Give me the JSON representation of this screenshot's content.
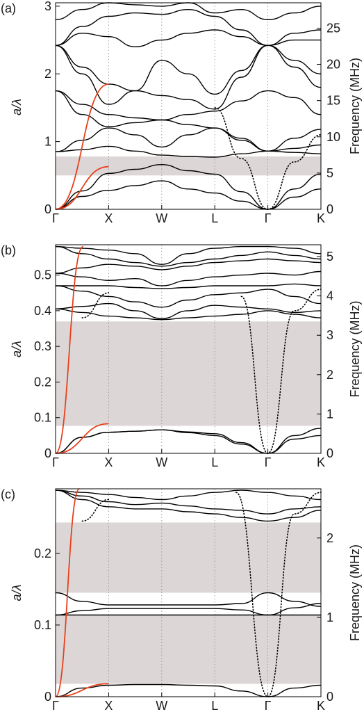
{
  "chart_data": [
    {
      "type": "line",
      "panel_label": "(a)",
      "xlabel": "",
      "ylabel": "a/λ",
      "y2label": "Frequency (MHz)",
      "x_ticks": [
        "Γ",
        "X",
        "W",
        "L",
        "Γ",
        "K"
      ],
      "ylim": [
        0,
        3.05
      ],
      "y_ticks": [
        "0",
        "1",
        "2",
        "3"
      ],
      "y2lim": [
        0,
        28.5
      ],
      "y2_ticks": [
        "0",
        "5",
        "10",
        "15",
        "20",
        "25"
      ],
      "gaps": [
        [
          0.5,
          0.78
        ]
      ],
      "series": [
        {
          "style": "solid",
          "color": "#000000",
          "x": [
            0,
            0.5,
            1,
            1.5,
            2,
            2.5,
            3,
            3.5,
            4,
            4.5,
            5
          ],
          "y": [
            0,
            0.19,
            0.28,
            0.35,
            0.42,
            0.3,
            0.24,
            0.12,
            0,
            0.18,
            0.3
          ]
        },
        {
          "style": "solid",
          "color": "#000000",
          "x": [
            0,
            0.5,
            1,
            1.5,
            2,
            2.5,
            3,
            3.5,
            4,
            4.5,
            5
          ],
          "y": [
            0,
            0.27,
            0.53,
            0.59,
            0.66,
            0.57,
            0.52,
            0.26,
            0,
            0.3,
            0.52
          ]
        },
        {
          "style": "solid",
          "color": "#000000",
          "x": [
            0,
            0.5,
            1,
            1.5,
            2,
            2.5,
            3,
            3.5,
            4,
            4.5,
            5
          ],
          "y": [
            0.85,
            0.88,
            0.93,
            0.86,
            0.8,
            0.78,
            0.77,
            0.82,
            0.86,
            0.84,
            0.82
          ]
        },
        {
          "style": "solid",
          "color": "#000000",
          "x": [
            0,
            0.5,
            1,
            1.5,
            2,
            2.5,
            3,
            3.5,
            4,
            4.5,
            5
          ],
          "y": [
            0.85,
            1.02,
            1.2,
            1.1,
            0.92,
            1.1,
            1.2,
            1.02,
            0.86,
            0.9,
            0.95
          ]
        },
        {
          "style": "solid",
          "color": "#000000",
          "x": [
            0,
            0.5,
            1,
            1.5,
            2,
            2.5,
            3,
            3.5,
            4,
            4.5,
            5
          ],
          "y": [
            1.75,
            1.4,
            1.22,
            1.28,
            1.32,
            1.25,
            1.2,
            1.05,
            0.86,
            1.05,
            1.18
          ]
        },
        {
          "style": "solid",
          "color": "#000000",
          "x": [
            0,
            0.5,
            1,
            1.5,
            2,
            2.5,
            3,
            3.5,
            4,
            4.5,
            5
          ],
          "y": [
            1.75,
            1.55,
            1.4,
            1.35,
            1.32,
            1.4,
            1.45,
            1.6,
            1.75,
            1.65,
            1.4
          ]
        },
        {
          "style": "solid",
          "color": "#000000",
          "x": [
            0,
            0.5,
            1,
            1.5,
            2,
            2.5,
            3,
            3.5,
            4,
            4.5,
            5
          ],
          "y": [
            2.42,
            2.1,
            1.85,
            1.75,
            1.68,
            1.62,
            1.48,
            1.95,
            2.42,
            2.1,
            1.8
          ]
        },
        {
          "style": "solid",
          "color": "#000000",
          "x": [
            0,
            0.5,
            1,
            1.5,
            2,
            2.5,
            3,
            3.5,
            4,
            4.5,
            5
          ],
          "y": [
            2.42,
            2.0,
            1.55,
            1.75,
            2.2,
            2.0,
            1.7,
            2.05,
            2.42,
            2.2,
            2.0
          ]
        },
        {
          "style": "solid",
          "color": "#000000",
          "x": [
            0,
            0.5,
            1,
            1.5,
            2,
            2.5,
            3,
            3.5,
            4,
            4.5,
            5
          ],
          "y": [
            2.42,
            2.6,
            2.55,
            2.4,
            2.5,
            2.6,
            2.65,
            2.55,
            2.42,
            2.5,
            2.5
          ]
        },
        {
          "style": "solid",
          "color": "#000000",
          "x": [
            0,
            0.5,
            1,
            1.5,
            2,
            2.5,
            3,
            3.5,
            4,
            4.5,
            5
          ],
          "y": [
            2.42,
            2.7,
            2.85,
            2.9,
            2.88,
            2.95,
            2.85,
            2.65,
            2.42,
            2.6,
            2.65
          ]
        },
        {
          "style": "solid",
          "color": "#000000",
          "x": [
            0,
            0.5,
            1,
            1.5,
            2,
            2.5,
            3,
            3.5,
            4,
            4.5,
            5
          ],
          "y": [
            2.8,
            2.95,
            3.05,
            3.02,
            3.0,
            3.05,
            2.9,
            2.95,
            2.8,
            2.9,
            3.0
          ]
        },
        {
          "style": "dotted",
          "color": "#000000",
          "x": [
            3.0,
            3.5,
            4.0,
            4.5,
            5.0
          ],
          "y": [
            1.5,
            0.75,
            0,
            0.7,
            1.1
          ]
        },
        {
          "style": "solid",
          "color": "#e8401c",
          "x": [
            0,
            1
          ],
          "y": [
            0,
            1.85
          ]
        },
        {
          "style": "solid",
          "color": "#e8401c",
          "x": [
            0,
            1
          ],
          "y": [
            0,
            0.63
          ]
        }
      ]
    },
    {
      "type": "line",
      "panel_label": "(b)",
      "xlabel": "",
      "ylabel": "a/λ",
      "y2label": "Frequency (MHz)",
      "x_ticks": [
        "Γ",
        "X",
        "W",
        "L",
        "Γ",
        "K"
      ],
      "ylim": [
        0,
        0.585
      ],
      "y_ticks": [
        "0",
        "0.1",
        "0.2",
        "0.3",
        "0.4",
        "0.5"
      ],
      "y2lim": [
        0,
        5.3
      ],
      "y2_ticks": [
        "0",
        "1",
        "2",
        "3",
        "4",
        "5"
      ],
      "gaps": [
        [
          0.077,
          0.37
        ]
      ],
      "series": [
        {
          "style": "solid",
          "color": "#000000",
          "x": [
            0,
            0.5,
            1,
            1.5,
            2,
            2.5,
            3,
            3.5,
            4,
            4.5,
            5
          ],
          "y": [
            0,
            0.045,
            0.059,
            0.062,
            0.066,
            0.058,
            0.05,
            0.026,
            0,
            0.04,
            0.05
          ]
        },
        {
          "style": "solid",
          "color": "#000000",
          "x": [
            0,
            0.5,
            1,
            1.5,
            2,
            2.5,
            3,
            3.5,
            4,
            4.5,
            5
          ],
          "y": [
            0,
            0.045,
            0.059,
            0.062,
            0.066,
            0.06,
            0.055,
            0.03,
            0,
            0.05,
            0.07
          ]
        },
        {
          "style": "solid",
          "color": "#000000",
          "x": [
            0,
            0.5,
            1,
            1.5,
            2,
            2.5,
            3,
            3.5,
            4,
            4.5,
            5
          ],
          "y": [
            0.405,
            0.395,
            0.385,
            0.38,
            0.375,
            0.38,
            0.385,
            0.39,
            0.4,
            0.39,
            0.38
          ]
        },
        {
          "style": "solid",
          "color": "#000000",
          "x": [
            0,
            0.5,
            1,
            1.5,
            2,
            2.5,
            3,
            3.5,
            4,
            4.5,
            5
          ],
          "y": [
            0.405,
            0.412,
            0.42,
            0.4,
            0.378,
            0.4,
            0.415,
            0.41,
            0.405,
            0.395,
            0.4
          ]
        },
        {
          "style": "solid",
          "color": "#000000",
          "x": [
            0,
            0.5,
            1,
            1.5,
            2,
            2.5,
            3,
            3.5,
            4,
            4.5,
            5
          ],
          "y": [
            0.47,
            0.455,
            0.44,
            0.425,
            0.41,
            0.43,
            0.445,
            0.45,
            0.46,
            0.44,
            0.42
          ]
        },
        {
          "style": "solid",
          "color": "#000000",
          "x": [
            0,
            0.5,
            1,
            1.5,
            2,
            2.5,
            3,
            3.5,
            4,
            4.5,
            5
          ],
          "y": [
            0.47,
            0.47,
            0.47,
            0.465,
            0.462,
            0.465,
            0.47,
            0.47,
            0.47,
            0.475,
            0.47
          ]
        },
        {
          "style": "solid",
          "color": "#000000",
          "x": [
            0,
            0.5,
            1,
            1.5,
            2,
            2.5,
            3,
            3.5,
            4,
            4.5,
            5
          ],
          "y": [
            0.505,
            0.495,
            0.485,
            0.49,
            0.47,
            0.485,
            0.495,
            0.5,
            0.505,
            0.5,
            0.51
          ]
        },
        {
          "style": "solid",
          "color": "#000000",
          "x": [
            0,
            0.5,
            1,
            1.5,
            2,
            2.5,
            3,
            3.5,
            4,
            4.5,
            5
          ],
          "y": [
            0.505,
            0.52,
            0.53,
            0.525,
            0.515,
            0.525,
            0.535,
            0.54,
            0.545,
            0.54,
            0.535
          ]
        },
        {
          "style": "solid",
          "color": "#000000",
          "x": [
            0,
            0.5,
            1,
            1.5,
            2,
            2.5,
            3,
            3.5,
            4,
            4.5,
            5
          ],
          "y": [
            0.58,
            0.56,
            0.545,
            0.535,
            0.525,
            0.535,
            0.545,
            0.555,
            0.565,
            0.555,
            0.545
          ]
        },
        {
          "style": "solid",
          "color": "#000000",
          "x": [
            0,
            0.5,
            1,
            1.5,
            2,
            2.5,
            3,
            3.5,
            4,
            4.5,
            5
          ],
          "y": [
            0.58,
            0.575,
            0.57,
            0.56,
            0.53,
            0.56,
            0.575,
            0.58,
            0.58,
            0.575,
            0.56
          ]
        },
        {
          "style": "dotted",
          "color": "#000000",
          "x": [
            0.5,
            1.0
          ],
          "y": [
            0.38,
            0.45
          ]
        },
        {
          "style": "dotted",
          "color": "#000000",
          "x": [
            3.5,
            4.0,
            4.5,
            5.0
          ],
          "y": [
            0.44,
            0,
            0.4,
            0.46
          ]
        },
        {
          "style": "solid",
          "color": "#e8401c",
          "x": [
            0,
            0.52
          ],
          "y": [
            0,
            0.58
          ]
        },
        {
          "style": "solid",
          "color": "#e8401c",
          "x": [
            0,
            1
          ],
          "y": [
            0,
            0.083
          ]
        }
      ]
    },
    {
      "type": "line",
      "panel_label": "(c)",
      "xlabel": "",
      "ylabel": "a/λ",
      "y2label": "Frequency (MHz)",
      "x_ticks": [
        "Γ",
        "X",
        "W",
        "L",
        "Γ",
        "K"
      ],
      "ylim": [
        0,
        0.29
      ],
      "y_ticks": [
        "0",
        "0.1",
        "0.2"
      ],
      "y2lim": [
        0,
        2.62
      ],
      "y2_ticks": [
        "0",
        "1",
        "2"
      ],
      "gaps": [
        [
          0.018,
          0.114
        ],
        [
          0.145,
          0.243
        ]
      ],
      "series": [
        {
          "style": "solid",
          "color": "#000000",
          "x": [
            0,
            0.5,
            1,
            1.5,
            2,
            2.5,
            3,
            3.5,
            4,
            4.5,
            5
          ],
          "y": [
            0,
            0.012,
            0.016,
            0.017,
            0.017,
            0.016,
            0.015,
            0.008,
            0,
            0.012,
            0.016
          ]
        },
        {
          "style": "solid",
          "color": "#000000",
          "x": [
            0,
            0.5,
            1,
            1.5,
            2,
            2.5,
            3,
            3.5,
            4,
            4.5,
            5
          ],
          "y": [
            0.114,
            0.114,
            0.114,
            0.114,
            0.114,
            0.114,
            0.114,
            0.114,
            0.114,
            0.114,
            0.114
          ]
        },
        {
          "style": "solid",
          "color": "#000000",
          "x": [
            0,
            0.5,
            1,
            1.5,
            2,
            2.5,
            3,
            3.5,
            4,
            4.5,
            5
          ],
          "y": [
            0.145,
            0.133,
            0.128,
            0.128,
            0.128,
            0.128,
            0.128,
            0.13,
            0.145,
            0.133,
            0.126
          ]
        },
        {
          "style": "solid",
          "color": "#000000",
          "x": [
            0,
            0.5,
            1,
            1.5,
            2,
            2.5,
            3,
            3.5,
            4,
            4.5,
            5
          ],
          "y": [
            0.114,
            0.12,
            0.123,
            0.123,
            0.123,
            0.123,
            0.123,
            0.121,
            0.114,
            0.124,
            0.13
          ]
        },
        {
          "style": "solid",
          "color": "#000000",
          "x": [
            0,
            0.5,
            1,
            1.5,
            2,
            2.5,
            3,
            3.5,
            4,
            4.5,
            5
          ],
          "y": [
            0.288,
            0.275,
            0.265,
            0.262,
            0.262,
            0.258,
            0.255,
            0.25,
            0.245,
            0.25,
            0.26
          ]
        },
        {
          "style": "solid",
          "color": "#000000",
          "x": [
            0,
            0.5,
            1,
            1.5,
            2,
            2.5,
            3,
            3.5,
            4,
            4.5,
            5
          ],
          "y": [
            0.288,
            0.28,
            0.272,
            0.268,
            0.27,
            0.266,
            0.262,
            0.26,
            0.255,
            0.262,
            0.265
          ]
        },
        {
          "style": "solid",
          "color": "#000000",
          "x": [
            0,
            0.5,
            1,
            1.5,
            2,
            2.5,
            3,
            3.5,
            4,
            4.5,
            5
          ],
          "y": [
            0.288,
            0.285,
            0.282,
            0.278,
            0.275,
            0.28,
            0.285,
            0.288,
            0.285,
            0.28,
            0.275
          ]
        },
        {
          "style": "dotted",
          "color": "#000000",
          "x": [
            0.5,
            1.0
          ],
          "y": [
            0.245,
            0.275
          ]
        },
        {
          "style": "dotted",
          "color": "#000000",
          "x": [
            3.4,
            4.0,
            4.5,
            5.0
          ],
          "y": [
            0.285,
            0,
            0.255,
            0.285
          ]
        },
        {
          "style": "solid",
          "color": "#e8401c",
          "x": [
            0,
            0.45
          ],
          "y": [
            0,
            0.29
          ]
        },
        {
          "style": "solid",
          "color": "#e8401c",
          "x": [
            0,
            1
          ],
          "y": [
            0,
            0.018
          ]
        }
      ]
    }
  ],
  "colors": {
    "band_line": "#000000",
    "sound_line": "#e8401c",
    "gap_fill": "#dcd7d6",
    "guide_line": "#8a8a8a"
  }
}
